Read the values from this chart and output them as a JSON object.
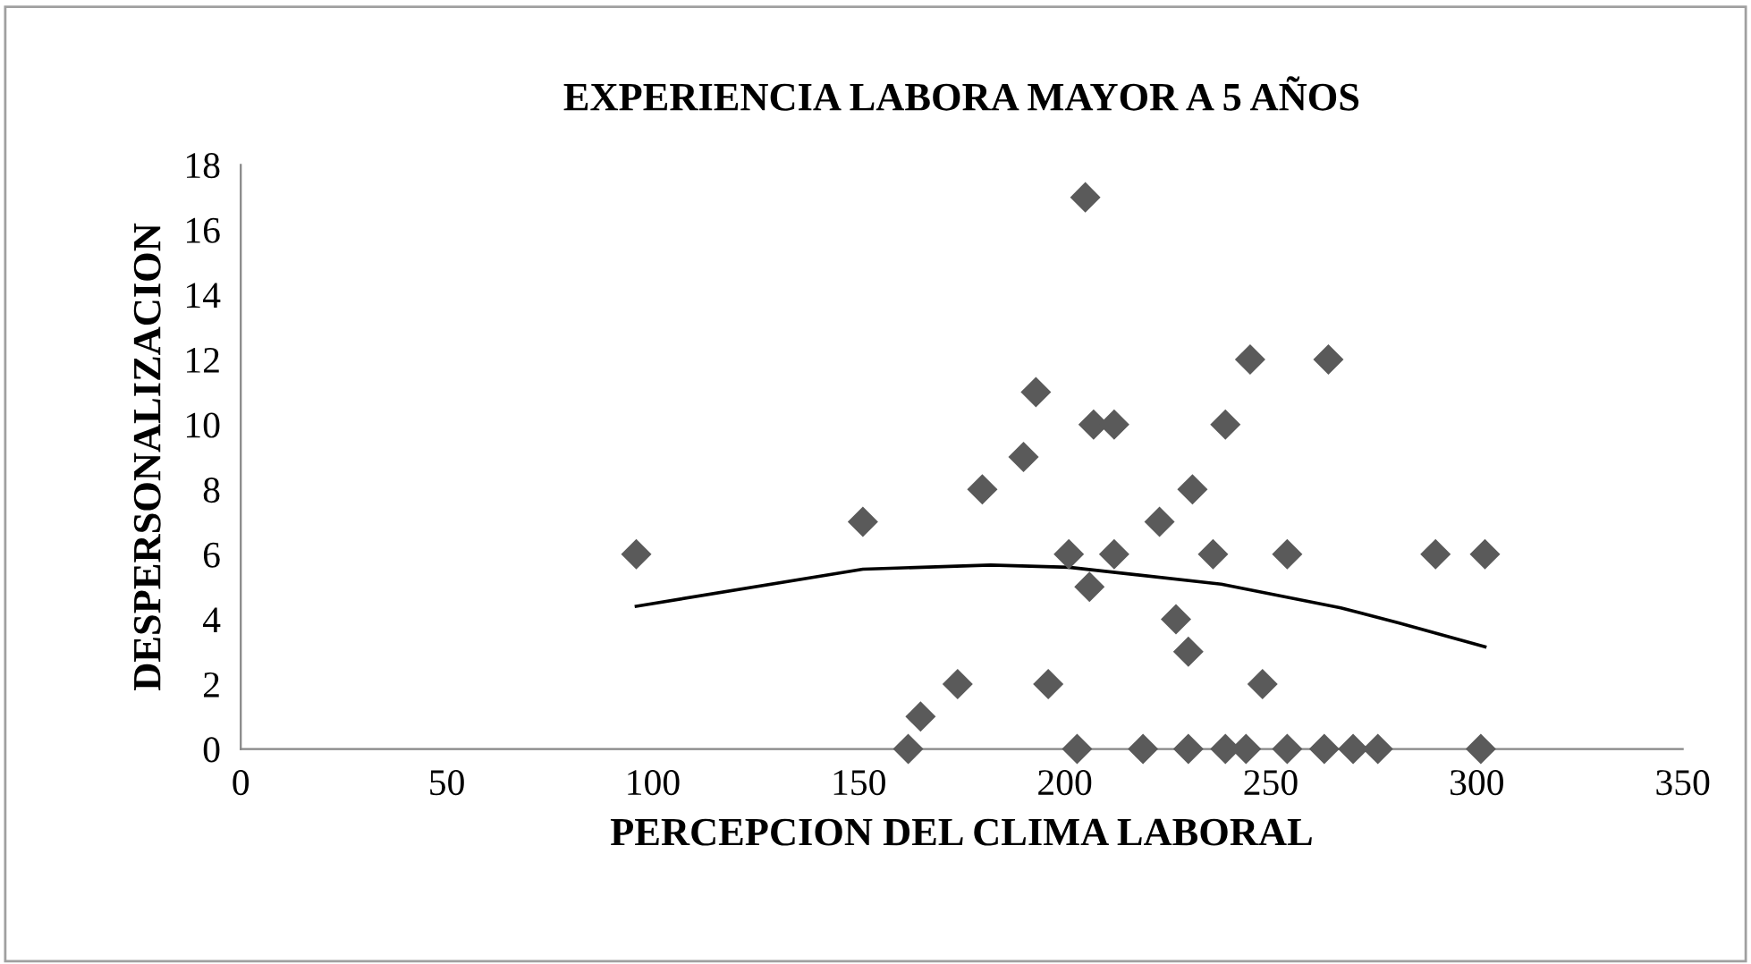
{
  "chart_data": {
    "type": "scatter",
    "title": "EXPERIENCIA LABORA MAYOR A 5 AÑOS",
    "xlabel": "PERCEPCION DEL CLIMA LABORAL",
    "ylabel": "DESPERSONALIZACION",
    "xlim": [
      0,
      350
    ],
    "xticks": [
      0,
      50,
      100,
      150,
      200,
      250,
      300,
      350
    ],
    "ylim": [
      0,
      18
    ],
    "yticks": [
      0,
      2,
      4,
      6,
      8,
      10,
      12,
      14,
      16,
      18
    ],
    "grid": false,
    "legend": false,
    "marker": "diamond",
    "series": [
      {
        "color": "#5a5a5a",
        "x": [
          96,
          151,
          174,
          165,
          162,
          205,
          245,
          264,
          193,
          207,
          212,
          239,
          190,
          180,
          231,
          223,
          201,
          212,
          236,
          254,
          290,
          302,
          206,
          227,
          230,
          196,
          248,
          203,
          219,
          230,
          239,
          244,
          254,
          263,
          270,
          276,
          301
        ],
        "values": [
          6,
          7,
          2,
          1,
          0,
          17,
          12,
          12,
          11,
          10,
          10,
          10,
          9,
          8,
          8,
          7,
          6,
          6,
          6,
          6,
          6,
          6,
          5,
          4,
          3,
          2,
          2,
          0,
          0,
          0,
          0,
          0,
          0,
          0,
          0,
          0,
          0
        ]
      },
      {
        "type": "line",
        "color": "#000000",
        "marker": "none",
        "x": [
          96,
          151,
          182,
          201,
          238,
          267,
          281,
          302
        ],
        "values": [
          4.4,
          5.54,
          5.67,
          5.6,
          5.08,
          4.35,
          3.89,
          3.15
        ]
      }
    ]
  }
}
